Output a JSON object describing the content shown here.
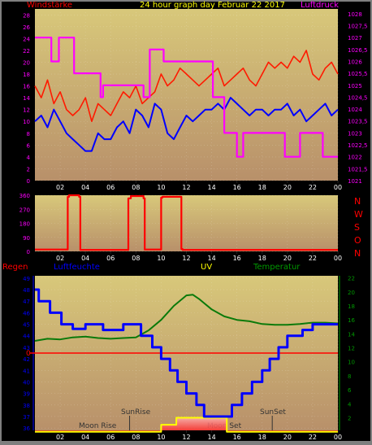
{
  "header": {
    "left_title": "Windstärke",
    "center_title": "24 hour graph day   Februar 22 2017",
    "right_title": "Luftdruck",
    "direction_letters": [
      "N",
      "W",
      "S",
      "O",
      "N"
    ],
    "regen_label": "Regen",
    "luftfeuchte_label": "Luftfeuchte",
    "uv_label": "UV",
    "temperatur_label": "Temperatur",
    "sunrise_label": "SunRise",
    "moonrise_label": "Moon Rise",
    "sunset_label": "SunSet",
    "moonset_label": "Moon Set",
    "zero_label": "0"
  },
  "colors": {
    "frame": "#7f7f7f",
    "panel_bg": "#000000",
    "plot_top": "#d8c87a",
    "plot_bottom": "#b8906a",
    "wind_gust": "#ff1a00",
    "wind_avg": "#0000ff",
    "pressure": "#ff00ff",
    "direction": "#ff0000",
    "humidity": "#0000ff",
    "temperature": "#0a7a0a",
    "uv": "#ffff00",
    "rain": "#ff0000",
    "title_red": "#ff0000",
    "title_yellow": "#ffff00",
    "title_magenta": "#ff00ff",
    "title_blue": "#0000ff",
    "title_green": "#009900"
  },
  "chart_data": [
    {
      "type": "line",
      "title": "24 hour graph day   Februar 22 2017",
      "x_ticks": [
        "02",
        "04",
        "06",
        "08",
        "10",
        "12",
        "14",
        "16",
        "18",
        "20",
        "22",
        "00"
      ],
      "x_range_hours": [
        0,
        24
      ],
      "y_left_label": "Windstärke",
      "y_left_ticks": [
        0,
        2,
        4,
        6,
        8,
        10,
        12,
        14,
        16,
        18,
        20,
        22,
        24,
        26,
        28
      ],
      "y_left_range": [
        0,
        29
      ],
      "y_right_label": "Luftdruck",
      "y_right_ticks": [
        "1021",
        "1021,5",
        "1022",
        "1022,5",
        "1023",
        "1023,5",
        "1024",
        "1024,5",
        "1025",
        "1025,5",
        "1026",
        "1026,5",
        "1027",
        "1027,5",
        "1028"
      ],
      "y_right_range": [
        1021,
        1028.2
      ],
      "series": [
        {
          "name": "Windstärke Böen",
          "axis": "left",
          "x": [
            0,
            0.5,
            1,
            1.5,
            2,
            2.5,
            3,
            3.5,
            4,
            4.5,
            5,
            5.5,
            6,
            6.5,
            7,
            7.5,
            8,
            8.5,
            9,
            9.5,
            10,
            10.5,
            11,
            11.5,
            12,
            12.5,
            13,
            13.5,
            14,
            14.5,
            15,
            15.5,
            16,
            16.5,
            17,
            17.5,
            18,
            18.5,
            19,
            19.5,
            20,
            20.5,
            21,
            21.5,
            22,
            22.5,
            23,
            23.5,
            24
          ],
          "y": [
            16,
            14,
            17,
            13,
            15,
            12,
            11,
            12,
            14,
            10,
            13,
            12,
            11,
            13,
            15,
            14,
            16,
            13,
            14,
            15,
            18,
            16,
            17,
            19,
            18,
            17,
            16,
            17,
            18,
            19,
            16,
            17,
            18,
            19,
            17,
            16,
            18,
            20,
            19,
            20,
            19,
            21,
            20,
            22,
            18,
            17,
            19,
            20,
            18
          ]
        },
        {
          "name": "Windstärke Mittel",
          "axis": "left",
          "x": [
            0,
            0.5,
            1,
            1.5,
            2,
            2.5,
            3,
            3.5,
            4,
            4.5,
            5,
            5.5,
            6,
            6.5,
            7,
            7.5,
            8,
            8.5,
            9,
            9.5,
            10,
            10.5,
            11,
            11.5,
            12,
            12.5,
            13,
            13.5,
            14,
            14.5,
            15,
            15.5,
            16,
            16.5,
            17,
            17.5,
            18,
            18.5,
            19,
            19.5,
            20,
            20.5,
            21,
            21.5,
            22,
            22.5,
            23,
            23.5,
            24
          ],
          "y": [
            10,
            11,
            9,
            12,
            10,
            8,
            7,
            6,
            5,
            5,
            8,
            7,
            7,
            9,
            10,
            8,
            12,
            11,
            9,
            13,
            12,
            8,
            7,
            9,
            11,
            10,
            11,
            12,
            12,
            13,
            12,
            14,
            13,
            12,
            11,
            12,
            12,
            11,
            12,
            12,
            13,
            11,
            12,
            10,
            11,
            12,
            13,
            11,
            12
          ]
        },
        {
          "name": "Luftdruck",
          "axis": "right",
          "x": [
            0,
            1.3,
            1.3,
            1.9,
            1.9,
            3.1,
            3.1,
            5.2,
            5.2,
            5.4,
            5.4,
            8.6,
            8.6,
            9.1,
            9.1,
            10.2,
            10.2,
            14.1,
            14.1,
            15.0,
            15.0,
            16.0,
            16.0,
            16.5,
            16.5,
            18.2,
            18.2,
            19.8,
            19.8,
            21.0,
            21.0,
            22.8,
            22.8,
            24
          ],
          "y": [
            1027,
            1027,
            1026,
            1026,
            1027,
            1027,
            1025.5,
            1025.5,
            1024.5,
            1024.5,
            1025,
            1025,
            1024.5,
            1024.5,
            1026.5,
            1026.5,
            1026,
            1026,
            1024.5,
            1024.5,
            1023,
            1023,
            1022,
            1022,
            1023,
            1023,
            1023,
            1023,
            1022,
            1022,
            1023,
            1023,
            1022,
            1022
          ]
        }
      ]
    },
    {
      "type": "line",
      "title": "",
      "x_ticks": [
        "02",
        "04",
        "06",
        "08",
        "10",
        "12",
        "14",
        "16",
        "18",
        "20",
        "22",
        "00"
      ],
      "x_range_hours": [
        0,
        24
      ],
      "y_ticks": [
        0,
        90,
        180,
        270,
        360
      ],
      "y_range": [
        0,
        360
      ],
      "right_labels": [
        "N",
        "W",
        "S",
        "O",
        "N"
      ],
      "series": [
        {
          "name": "Windrichtung",
          "x": [
            0,
            2.6,
            2.6,
            2.7,
            2.7,
            3.5,
            3.5,
            3.6,
            3.6,
            7.4,
            7.4,
            7.6,
            7.6,
            8.6,
            8.6,
            8.7,
            8.7,
            10.0,
            10.0,
            10.1,
            10.1,
            11.6,
            11.6,
            11.7,
            11.7,
            24
          ],
          "y": [
            12,
            12,
            350,
            350,
            360,
            360,
            350,
            350,
            10,
            10,
            340,
            340,
            355,
            355,
            340,
            340,
            12,
            12,
            345,
            345,
            350,
            350,
            15,
            15,
            10,
            10
          ]
        }
      ]
    },
    {
      "type": "line",
      "title": "",
      "x_ticks": [
        "02",
        "04",
        "06",
        "08",
        "10",
        "12",
        "14",
        "16",
        "18",
        "20",
        "22",
        "00"
      ],
      "x_range_hours": [
        0,
        24
      ],
      "y_left_label": "Luftfeuchte",
      "y_left_ticks": [
        36,
        37,
        38,
        39,
        40,
        41,
        42,
        43,
        44,
        45,
        46,
        47,
        48,
        49
      ],
      "y_left_range": [
        35.8,
        49.2
      ],
      "y_right_label": "Temperatur",
      "y_right_ticks": [
        2,
        4,
        6,
        8,
        10,
        12,
        14,
        16,
        18,
        20,
        22
      ],
      "y_right_range": [
        0.2,
        22.3
      ],
      "rain_label": "Regen",
      "rain_zero_label": "0",
      "series": [
        {
          "name": "Luftfeuchte",
          "axis": "left",
          "x": [
            0,
            0.3,
            0.3,
            1.2,
            1.2,
            2.1,
            2.1,
            3.0,
            3.0,
            4.0,
            4.0,
            5.4,
            5.4,
            7.0,
            7.0,
            8.4,
            8.4,
            9.3,
            9.3,
            10.0,
            10.0,
            10.7,
            10.7,
            11.3,
            11.3,
            12.0,
            12.0,
            12.8,
            12.8,
            13.4,
            13.4,
            15.6,
            15.6,
            16.4,
            16.4,
            17.2,
            17.2,
            18.0,
            18.0,
            18.6,
            18.6,
            19.3,
            19.3,
            20.0,
            20.0,
            21.2,
            21.2,
            22.0,
            22.0,
            22.8,
            22.8,
            24
          ],
          "y": [
            48,
            48,
            47,
            47,
            46,
            46,
            45,
            45,
            44.6,
            44.6,
            45,
            45,
            44.5,
            44.5,
            45,
            45,
            44,
            44,
            43,
            43,
            42,
            42,
            41,
            41,
            40,
            40,
            39,
            39,
            38,
            38,
            37,
            37,
            38,
            38,
            39,
            39,
            40,
            40,
            41,
            41,
            42,
            42,
            43,
            43,
            44,
            44,
            44.5,
            44.5,
            45,
            45,
            45,
            45
          ]
        },
        {
          "name": "Temperatur",
          "axis": "right",
          "x": [
            0,
            1,
            2,
            3,
            4,
            5,
            6,
            7,
            8,
            9,
            10,
            11,
            12,
            12.5,
            13,
            14,
            15,
            16,
            17,
            18,
            19,
            20,
            21,
            22,
            23,
            24
          ],
          "y": [
            13,
            13.3,
            13.2,
            13.5,
            13.6,
            13.4,
            13.3,
            13.4,
            13.5,
            14.5,
            16,
            18,
            19.5,
            19.6,
            19,
            17.5,
            16.5,
            16,
            15.8,
            15.4,
            15.3,
            15.3,
            15.4,
            15.6,
            15.6,
            15.5
          ]
        },
        {
          "name": "UV",
          "axis": "right",
          "x": [
            0,
            10.0,
            10.0,
            11.2,
            11.2,
            15.2,
            15.2,
            24
          ],
          "y": [
            0,
            0,
            1,
            1,
            2,
            2,
            0,
            0
          ]
        },
        {
          "name": "Regen",
          "axis": "rain",
          "x": [
            0,
            24
          ],
          "y": [
            0,
            0
          ]
        }
      ]
    }
  ]
}
